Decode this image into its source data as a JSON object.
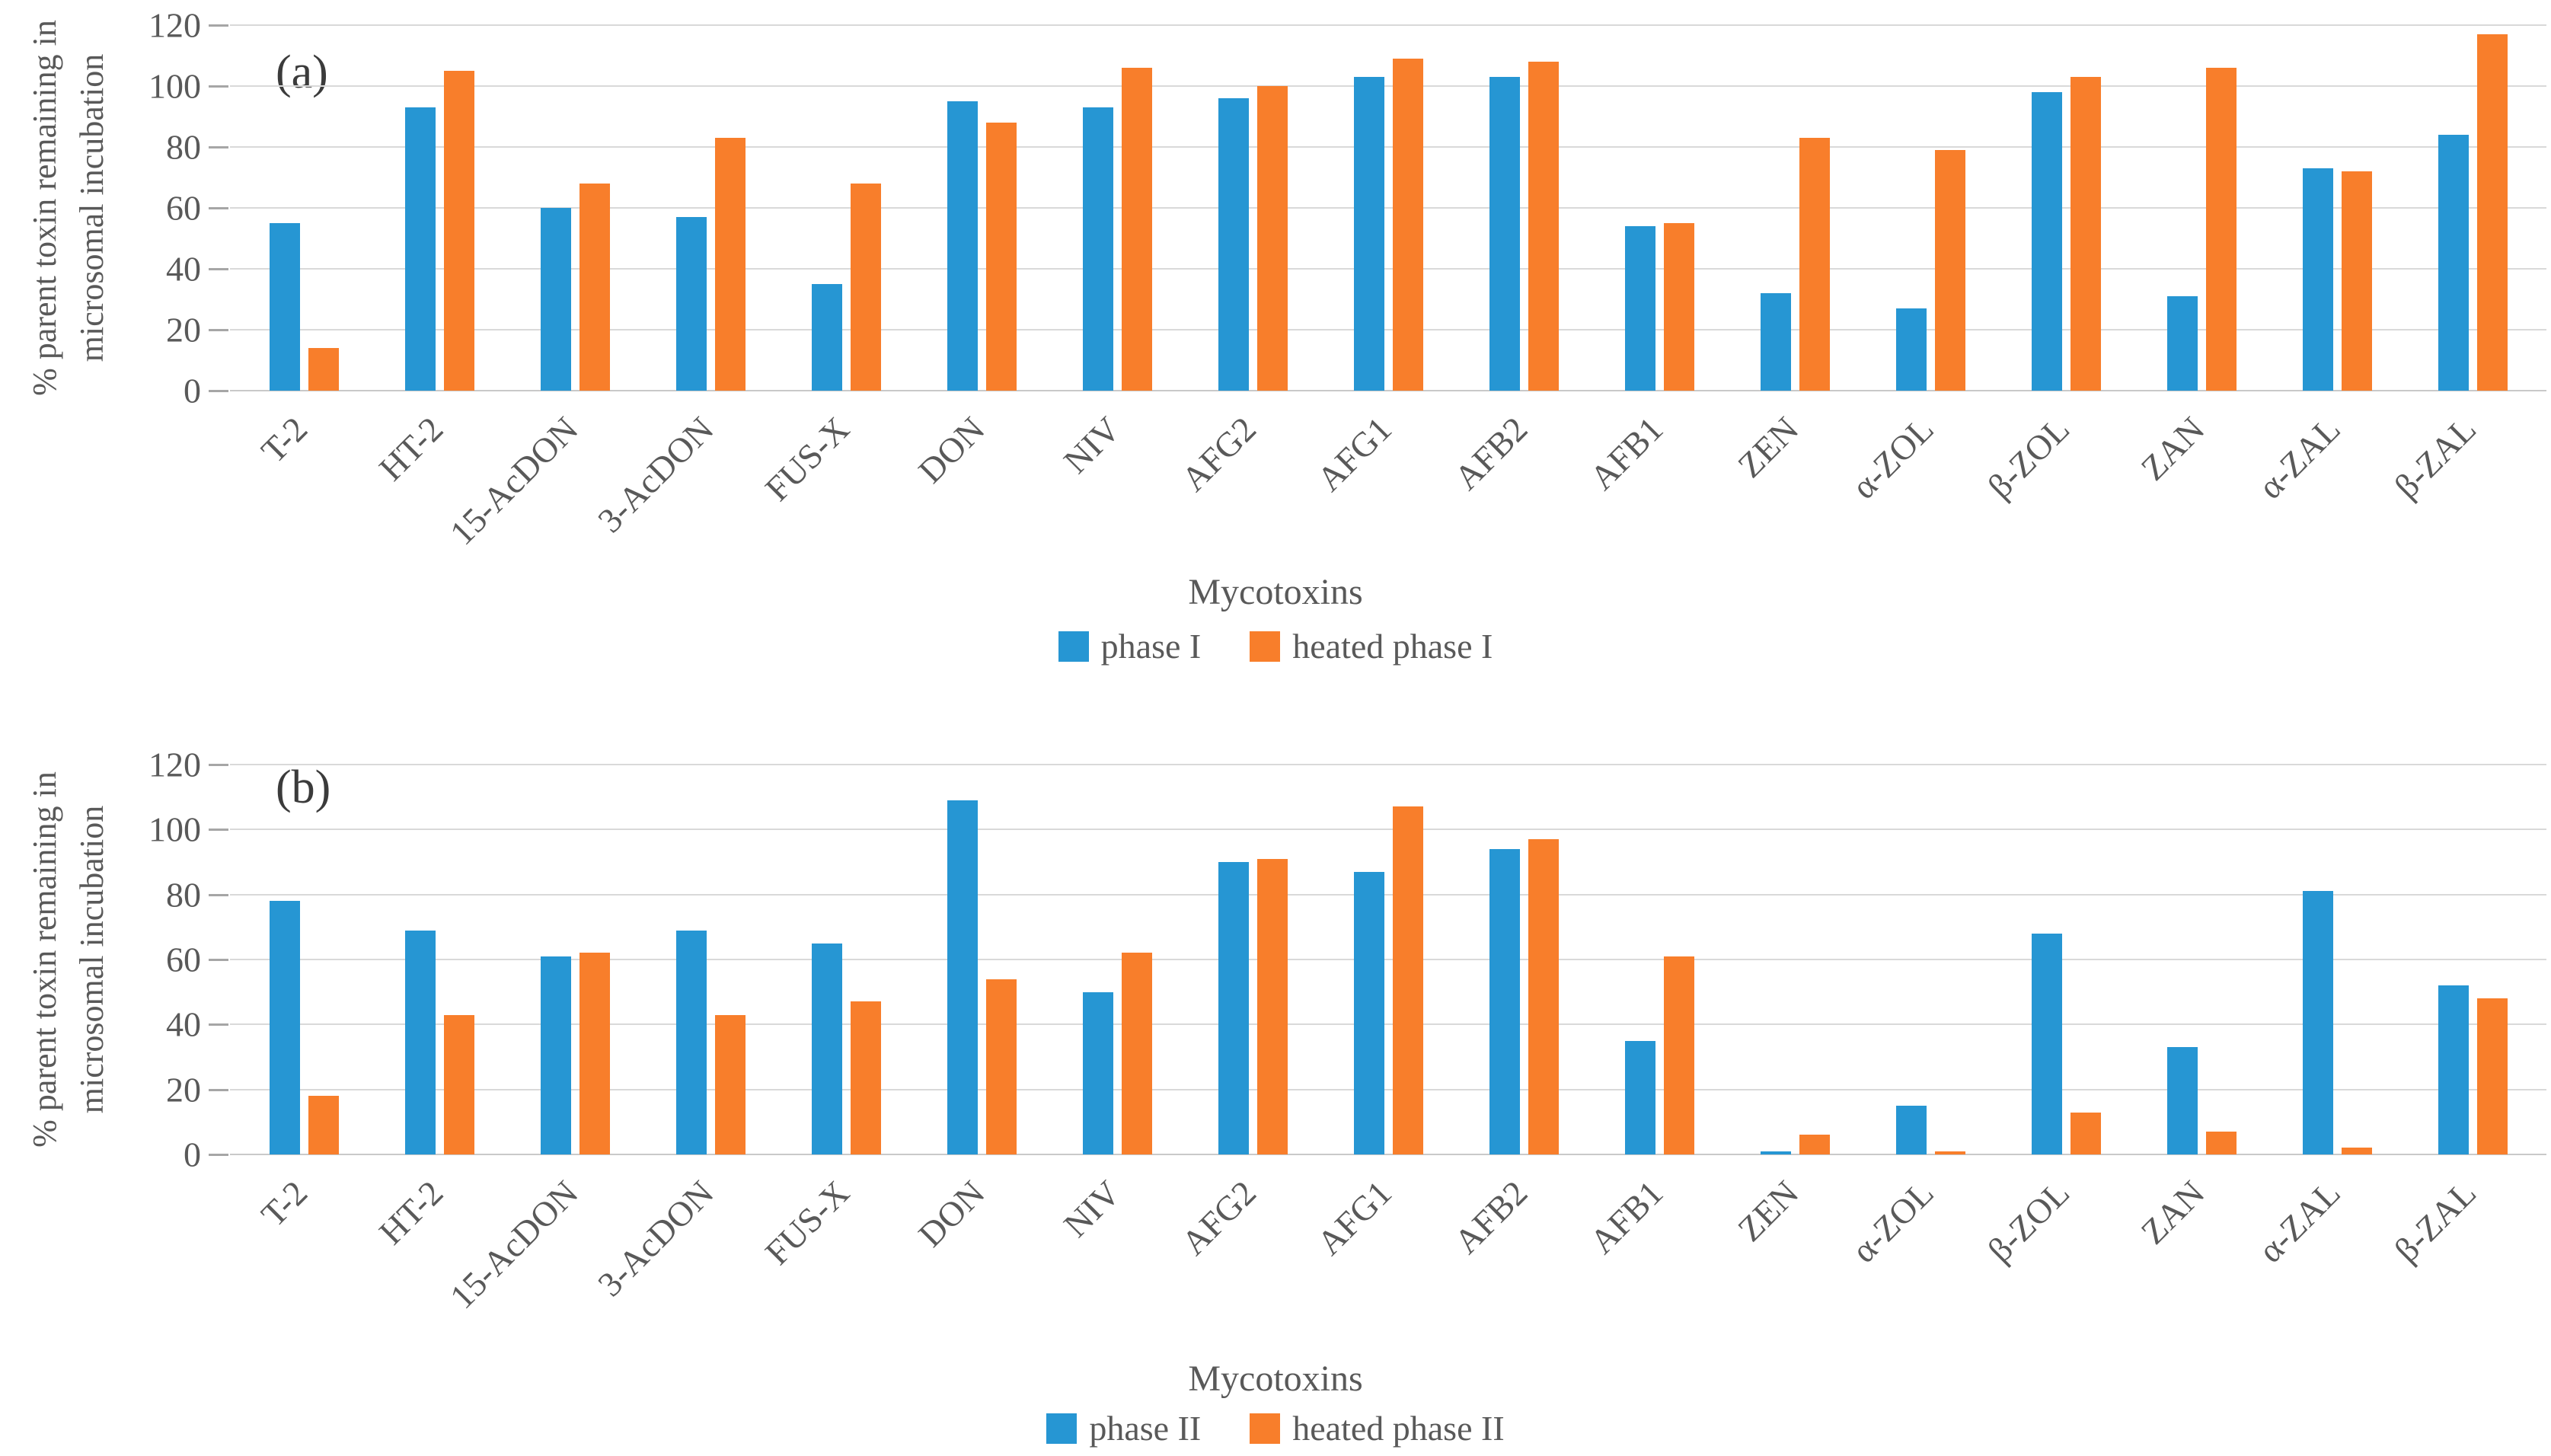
{
  "chart_data": [
    {
      "type": "bar",
      "panel_label": "(a)",
      "categories": [
        "T-2",
        "HT-2",
        "15-AcDON",
        "3-AcDON",
        "FUS-X",
        "DON",
        "NIV",
        "AFG2",
        "AFG1",
        "AFB2",
        "AFB1",
        "ZEN",
        "α-ZOL",
        "β-ZOL",
        "ZAN",
        "α-ZAL",
        "β-ZAL"
      ],
      "series": [
        {
          "name": "phase I",
          "color": "#2696D3",
          "values": [
            55,
            93,
            60,
            57,
            35,
            95,
            93,
            96,
            103,
            103,
            54,
            32,
            27,
            98,
            31,
            73,
            84
          ]
        },
        {
          "name": "heated phase I",
          "color": "#F87E2B",
          "values": [
            14,
            105,
            68,
            83,
            68,
            88,
            106,
            100,
            109,
            108,
            55,
            83,
            79,
            103,
            106,
            72,
            117
          ]
        }
      ],
      "xlabel": "Mycotoxins",
      "ylabel_line1": "% parent toxin remaining in",
      "ylabel_line2": "microsomal incubation",
      "ylim": [
        0,
        120
      ],
      "yticks": [
        120,
        100,
        80,
        60,
        40,
        20,
        0
      ],
      "grid": "horizontal",
      "legend_position": "bottom"
    },
    {
      "type": "bar",
      "panel_label": "(b)",
      "categories": [
        "T-2",
        "HT-2",
        "15-AcDON",
        "3-AcDON",
        "FUS-X",
        "DON",
        "NIV",
        "AFG2",
        "AFG1",
        "AFB2",
        "AFB1",
        "ZEN",
        "α-ZOL",
        "β-ZOL",
        "ZAN",
        "α-ZAL",
        "β-ZAL"
      ],
      "series": [
        {
          "name": "phase II",
          "color": "#2696D3",
          "values": [
            78,
            69,
            61,
            69,
            65,
            109,
            50,
            90,
            87,
            94,
            35,
            1,
            15,
            68,
            33,
            81,
            52
          ]
        },
        {
          "name": "heated phase II",
          "color": "#F87E2B",
          "values": [
            18,
            43,
            62,
            43,
            47,
            54,
            62,
            91,
            107,
            97,
            61,
            6,
            1,
            13,
            7,
            2,
            48
          ]
        }
      ],
      "xlabel": "Mycotoxins",
      "ylabel_line1": "% parent toxin remaining in",
      "ylabel_line2": "microsomal incubation",
      "ylim": [
        0,
        120
      ],
      "yticks": [
        120,
        100,
        80,
        60,
        40,
        20,
        0
      ],
      "grid": "horizontal",
      "legend_position": "bottom"
    }
  ]
}
